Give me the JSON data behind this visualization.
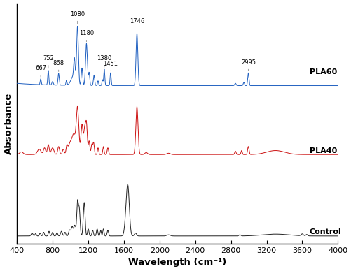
{
  "xlabel": "Wavelength (cm⁻¹)",
  "ylabel": "Absorbance",
  "xlim": [
    400,
    4000
  ],
  "x_ticks": [
    400,
    800,
    1200,
    1600,
    2000,
    2400,
    2800,
    3200,
    3600,
    4000
  ],
  "colors": {
    "pla60": "#2060c0",
    "pla40": "#cc1111",
    "control": "#222222"
  },
  "offsets": {
    "pla60": 2.05,
    "pla40": 1.05,
    "control": 0.0
  },
  "labels": {
    "pla60": "PLA60",
    "pla40": "PLA40",
    "control": "Control"
  },
  "annotations": [
    {
      "x": 667,
      "label": "667"
    },
    {
      "x": 752,
      "label": "752"
    },
    {
      "x": 868,
      "label": "868"
    },
    {
      "x": 1080,
      "label": "1080"
    },
    {
      "x": 1180,
      "label": "1180"
    },
    {
      "x": 1380,
      "label": "1380"
    },
    {
      "x": 1451,
      "label": "1451"
    },
    {
      "x": 1746,
      "label": "1746"
    },
    {
      "x": 2995,
      "label": "2995"
    }
  ],
  "background_color": "#ffffff"
}
